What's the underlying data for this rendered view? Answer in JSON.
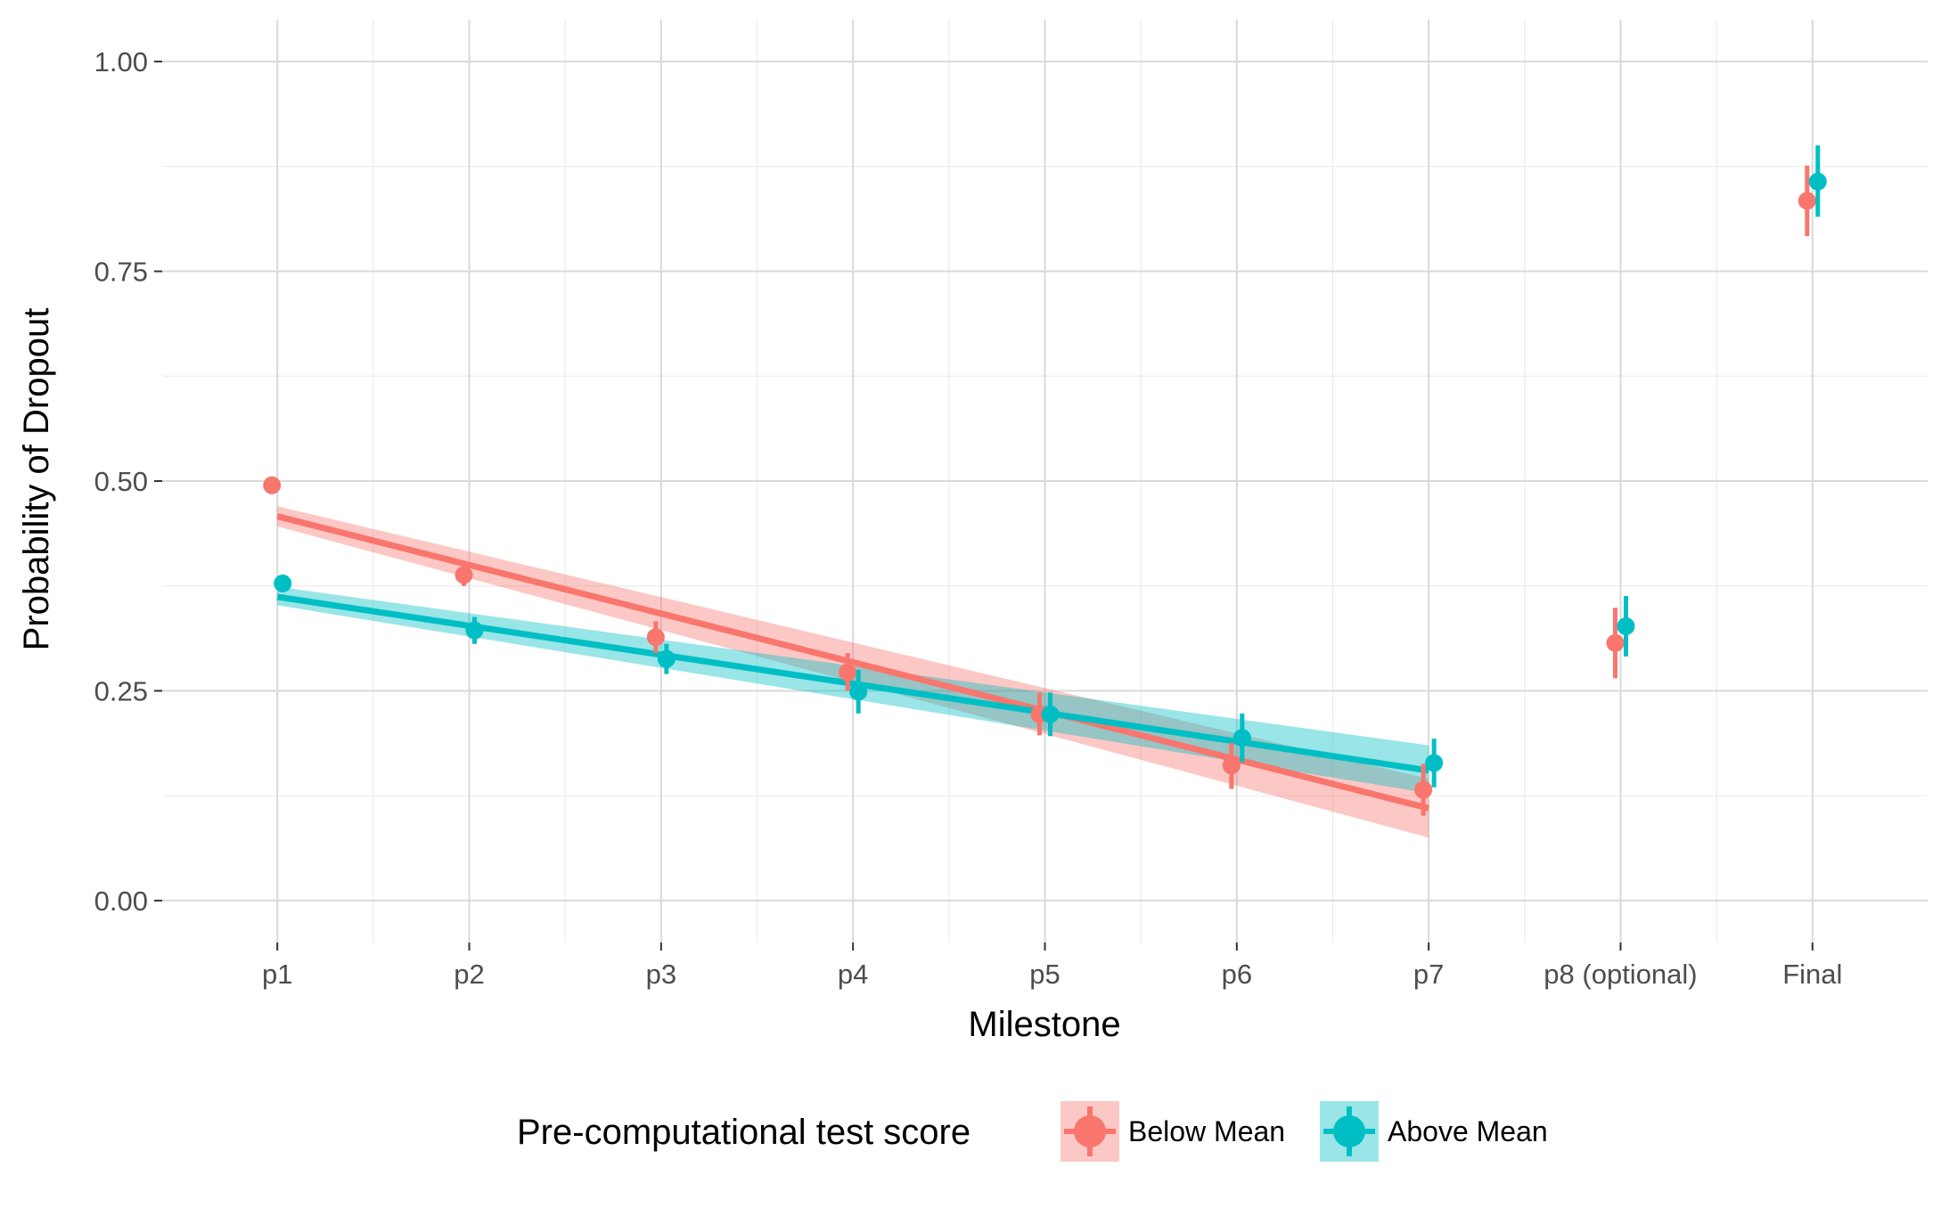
{
  "chart_data": {
    "type": "scatter",
    "xlabel": "Milestone",
    "ylabel": "Probability of Dropout",
    "categories": [
      "p1",
      "p2",
      "p3",
      "p4",
      "p5",
      "p6",
      "p7",
      "p8 (optional)",
      "Final"
    ],
    "ylim": [
      -0.05,
      1.05
    ],
    "yticks": [
      "0.00",
      "0.25",
      "0.50",
      "0.75",
      "1.00"
    ],
    "grid": true,
    "legend": {
      "title": "Pre-computational test score",
      "position": "bottom"
    },
    "series": [
      {
        "name": "Below Mean",
        "color": "#F8766D",
        "ribbon_color": "#F8766D",
        "points": [
          {
            "x": "p1",
            "y": 0.495,
            "lo": null,
            "hi": null
          },
          {
            "x": "p2",
            "y": 0.388,
            "lo": 0.375,
            "hi": 0.401
          },
          {
            "x": "p3",
            "y": 0.314,
            "lo": 0.295,
            "hi": 0.333
          },
          {
            "x": "p4",
            "y": 0.272,
            "lo": 0.25,
            "hi": 0.295
          },
          {
            "x": "p5",
            "y": 0.222,
            "lo": 0.197,
            "hi": 0.248
          },
          {
            "x": "p6",
            "y": 0.161,
            "lo": 0.133,
            "hi": 0.188
          },
          {
            "x": "p7",
            "y": 0.132,
            "lo": 0.101,
            "hi": 0.163
          },
          {
            "x": "p8 (optional)",
            "y": 0.307,
            "lo": 0.265,
            "hi": 0.349
          },
          {
            "x": "Final",
            "y": 0.834,
            "lo": 0.792,
            "hi": 0.876
          }
        ],
        "trend": {
          "from": "p1",
          "to": "p7",
          "y_start": 0.458,
          "y_end": 0.11,
          "band_start": [
            0.446,
            0.47
          ],
          "band_end": [
            0.075,
            0.145
          ]
        }
      },
      {
        "name": "Above Mean",
        "color": "#00BFC4",
        "ribbon_color": "#00BFC4",
        "points": [
          {
            "x": "p1",
            "y": 0.378,
            "lo": null,
            "hi": null
          },
          {
            "x": "p2",
            "y": 0.322,
            "lo": 0.306,
            "hi": 0.338
          },
          {
            "x": "p3",
            "y": 0.288,
            "lo": 0.27,
            "hi": 0.306
          },
          {
            "x": "p4",
            "y": 0.249,
            "lo": 0.223,
            "hi": 0.275
          },
          {
            "x": "p5",
            "y": 0.222,
            "lo": 0.196,
            "hi": 0.248
          },
          {
            "x": "p6",
            "y": 0.194,
            "lo": 0.165,
            "hi": 0.223
          },
          {
            "x": "p7",
            "y": 0.164,
            "lo": 0.135,
            "hi": 0.193
          },
          {
            "x": "p8 (optional)",
            "y": 0.327,
            "lo": 0.291,
            "hi": 0.363
          },
          {
            "x": "Final",
            "y": 0.857,
            "lo": 0.815,
            "hi": 0.9
          }
        ],
        "trend": {
          "from": "p1",
          "to": "p7",
          "y_start": 0.362,
          "y_end": 0.155,
          "band_start": [
            0.352,
            0.374
          ],
          "band_end": [
            0.128,
            0.185
          ]
        }
      }
    ]
  }
}
